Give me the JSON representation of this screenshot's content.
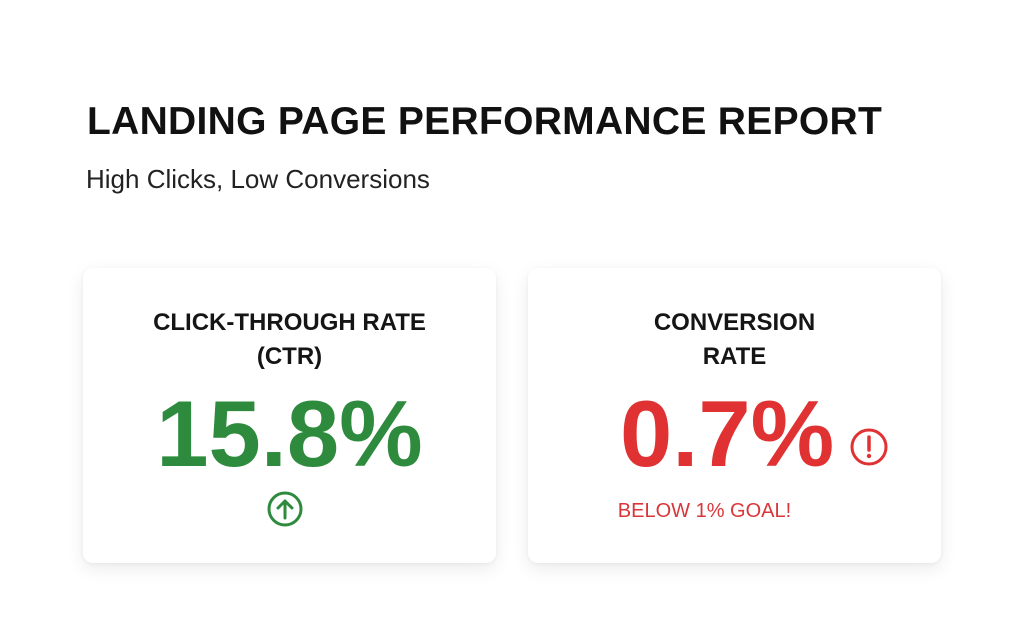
{
  "header": {
    "title": "LANDING PAGE PERFORMANCE REPORT",
    "subtitle": "High Clicks, Low Conversions"
  },
  "cards": [
    {
      "label": [
        "CLICK-THROUGH RATE",
        "(CTR)"
      ],
      "value": "15.8%"
    },
    {
      "label": [
        "CONVERSION",
        "RATE"
      ],
      "value": "0.7%",
      "note": "BELOW 1% GOAL!"
    }
  ]
}
